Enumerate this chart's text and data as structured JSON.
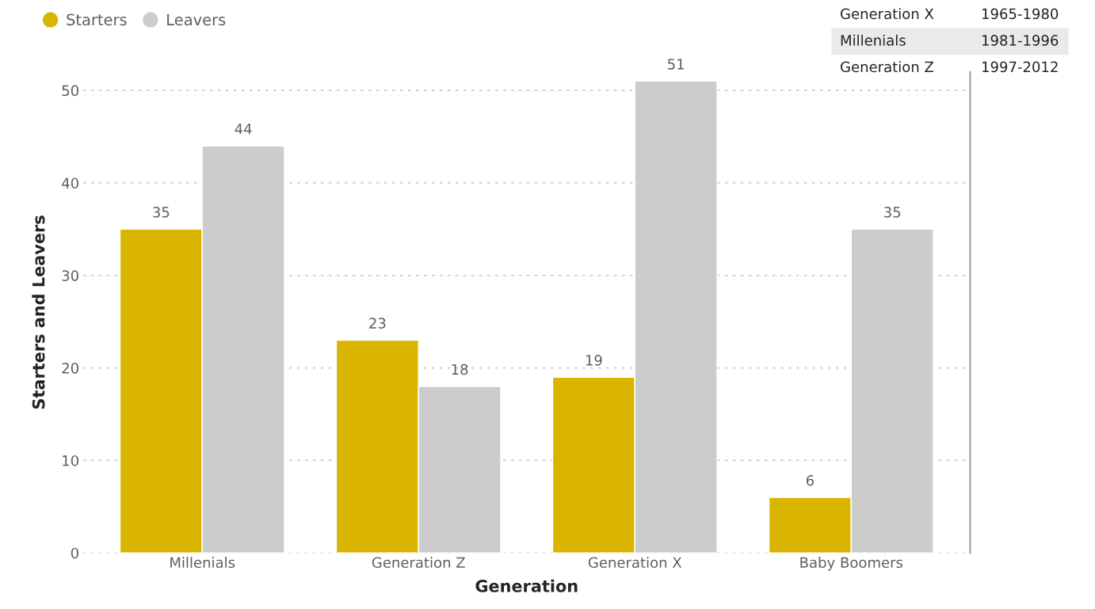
{
  "chart_data": {
    "type": "bar",
    "xlabel": "Generation",
    "ylabel": "Starters and Leavers",
    "categories": [
      "Millenials",
      "Generation Z",
      "Generation X",
      "Baby Boomers"
    ],
    "series": [
      {
        "name": "Starters",
        "color": "#dab500",
        "values": [
          35,
          23,
          19,
          6
        ]
      },
      {
        "name": "Leavers",
        "color": "#cccccc",
        "values": [
          44,
          18,
          51,
          35
        ]
      }
    ],
    "ylim": [
      0,
      52
    ],
    "yticks": [
      0,
      10,
      20,
      30,
      40,
      50
    ],
    "grid": "y",
    "legend": "top left",
    "data_labels": true,
    "annotations": [
      "Generation X",
      "1965-1980",
      "Millenials",
      "1981-1996",
      "Generation Z",
      "1997-2012"
    ]
  }
}
